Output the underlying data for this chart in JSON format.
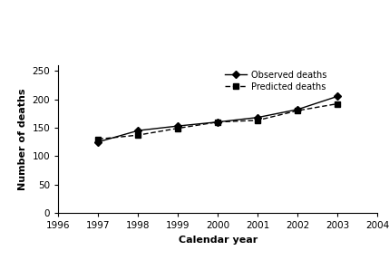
{
  "years": [
    1997,
    1998,
    1999,
    2000,
    2001,
    2002,
    2003
  ],
  "observed": [
    125,
    145,
    153,
    160,
    168,
    182,
    205
  ],
  "predicted": [
    130,
    137,
    149,
    160,
    163,
    180,
    192
  ],
  "xlim": [
    1996,
    2004
  ],
  "ylim": [
    0,
    260
  ],
  "xticks": [
    1996,
    1997,
    1998,
    1999,
    2000,
    2001,
    2002,
    2003,
    2004
  ],
  "yticks": [
    0,
    50,
    100,
    150,
    200,
    250
  ],
  "xlabel": "Calendar year",
  "ylabel": "Number of deaths",
  "legend_observed": "Observed deaths",
  "legend_predicted": "Predicted deaths",
  "line_color": "#000000",
  "bg_color": "#ffffff"
}
